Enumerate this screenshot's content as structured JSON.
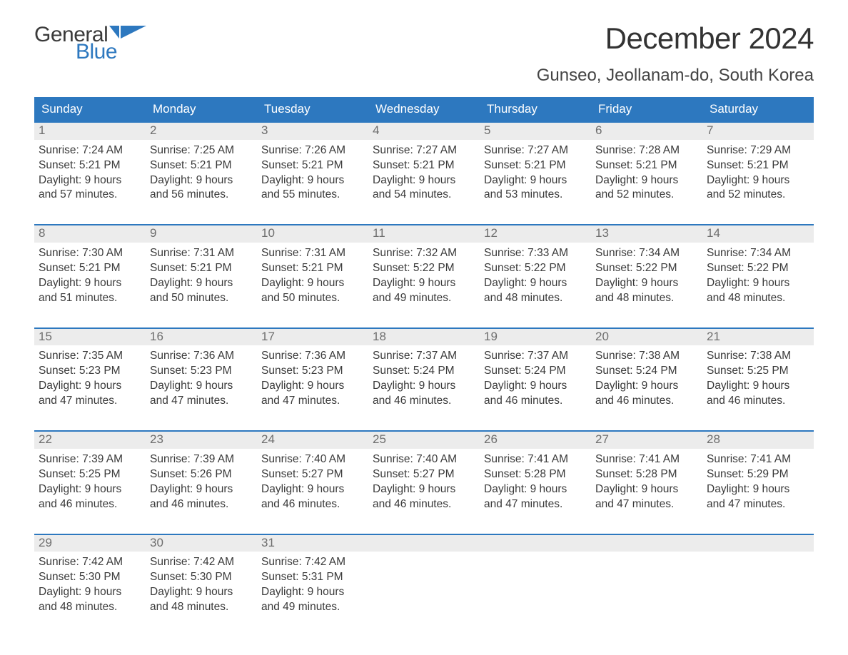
{
  "colors": {
    "brand_blue": "#2d78bf",
    "text_main": "#3a3a3a",
    "text_muted": "#6e6e6e",
    "daynum_bg": "#ececec",
    "background": "#ffffff",
    "week_divider": "#2d78bf"
  },
  "typography": {
    "font_family": "Arial, Helvetica, sans-serif",
    "month_title_fontsize": 42,
    "location_fontsize": 24,
    "dow_fontsize": 17,
    "daynum_fontsize": 17,
    "daybody_fontsize": 15.5,
    "logo_fontsize": 30
  },
  "logo": {
    "text_top": "General",
    "text_bottom": "Blue"
  },
  "header": {
    "month_title": "December 2024",
    "location": "Gunseo, Jeollanam-do, South Korea"
  },
  "days_of_week": [
    "Sunday",
    "Monday",
    "Tuesday",
    "Wednesday",
    "Thursday",
    "Friday",
    "Saturday"
  ],
  "weeks": [
    [
      {
        "num": "1",
        "sunrise": "Sunrise: 7:24 AM",
        "sunset": "Sunset: 5:21 PM",
        "daylight1": "Daylight: 9 hours",
        "daylight2": "and 57 minutes."
      },
      {
        "num": "2",
        "sunrise": "Sunrise: 7:25 AM",
        "sunset": "Sunset: 5:21 PM",
        "daylight1": "Daylight: 9 hours",
        "daylight2": "and 56 minutes."
      },
      {
        "num": "3",
        "sunrise": "Sunrise: 7:26 AM",
        "sunset": "Sunset: 5:21 PM",
        "daylight1": "Daylight: 9 hours",
        "daylight2": "and 55 minutes."
      },
      {
        "num": "4",
        "sunrise": "Sunrise: 7:27 AM",
        "sunset": "Sunset: 5:21 PM",
        "daylight1": "Daylight: 9 hours",
        "daylight2": "and 54 minutes."
      },
      {
        "num": "5",
        "sunrise": "Sunrise: 7:27 AM",
        "sunset": "Sunset: 5:21 PM",
        "daylight1": "Daylight: 9 hours",
        "daylight2": "and 53 minutes."
      },
      {
        "num": "6",
        "sunrise": "Sunrise: 7:28 AM",
        "sunset": "Sunset: 5:21 PM",
        "daylight1": "Daylight: 9 hours",
        "daylight2": "and 52 minutes."
      },
      {
        "num": "7",
        "sunrise": "Sunrise: 7:29 AM",
        "sunset": "Sunset: 5:21 PM",
        "daylight1": "Daylight: 9 hours",
        "daylight2": "and 52 minutes."
      }
    ],
    [
      {
        "num": "8",
        "sunrise": "Sunrise: 7:30 AM",
        "sunset": "Sunset: 5:21 PM",
        "daylight1": "Daylight: 9 hours",
        "daylight2": "and 51 minutes."
      },
      {
        "num": "9",
        "sunrise": "Sunrise: 7:31 AM",
        "sunset": "Sunset: 5:21 PM",
        "daylight1": "Daylight: 9 hours",
        "daylight2": "and 50 minutes."
      },
      {
        "num": "10",
        "sunrise": "Sunrise: 7:31 AM",
        "sunset": "Sunset: 5:21 PM",
        "daylight1": "Daylight: 9 hours",
        "daylight2": "and 50 minutes."
      },
      {
        "num": "11",
        "sunrise": "Sunrise: 7:32 AM",
        "sunset": "Sunset: 5:22 PM",
        "daylight1": "Daylight: 9 hours",
        "daylight2": "and 49 minutes."
      },
      {
        "num": "12",
        "sunrise": "Sunrise: 7:33 AM",
        "sunset": "Sunset: 5:22 PM",
        "daylight1": "Daylight: 9 hours",
        "daylight2": "and 48 minutes."
      },
      {
        "num": "13",
        "sunrise": "Sunrise: 7:34 AM",
        "sunset": "Sunset: 5:22 PM",
        "daylight1": "Daylight: 9 hours",
        "daylight2": "and 48 minutes."
      },
      {
        "num": "14",
        "sunrise": "Sunrise: 7:34 AM",
        "sunset": "Sunset: 5:22 PM",
        "daylight1": "Daylight: 9 hours",
        "daylight2": "and 48 minutes."
      }
    ],
    [
      {
        "num": "15",
        "sunrise": "Sunrise: 7:35 AM",
        "sunset": "Sunset: 5:23 PM",
        "daylight1": "Daylight: 9 hours",
        "daylight2": "and 47 minutes."
      },
      {
        "num": "16",
        "sunrise": "Sunrise: 7:36 AM",
        "sunset": "Sunset: 5:23 PM",
        "daylight1": "Daylight: 9 hours",
        "daylight2": "and 47 minutes."
      },
      {
        "num": "17",
        "sunrise": "Sunrise: 7:36 AM",
        "sunset": "Sunset: 5:23 PM",
        "daylight1": "Daylight: 9 hours",
        "daylight2": "and 47 minutes."
      },
      {
        "num": "18",
        "sunrise": "Sunrise: 7:37 AM",
        "sunset": "Sunset: 5:24 PM",
        "daylight1": "Daylight: 9 hours",
        "daylight2": "and 46 minutes."
      },
      {
        "num": "19",
        "sunrise": "Sunrise: 7:37 AM",
        "sunset": "Sunset: 5:24 PM",
        "daylight1": "Daylight: 9 hours",
        "daylight2": "and 46 minutes."
      },
      {
        "num": "20",
        "sunrise": "Sunrise: 7:38 AM",
        "sunset": "Sunset: 5:24 PM",
        "daylight1": "Daylight: 9 hours",
        "daylight2": "and 46 minutes."
      },
      {
        "num": "21",
        "sunrise": "Sunrise: 7:38 AM",
        "sunset": "Sunset: 5:25 PM",
        "daylight1": "Daylight: 9 hours",
        "daylight2": "and 46 minutes."
      }
    ],
    [
      {
        "num": "22",
        "sunrise": "Sunrise: 7:39 AM",
        "sunset": "Sunset: 5:25 PM",
        "daylight1": "Daylight: 9 hours",
        "daylight2": "and 46 minutes."
      },
      {
        "num": "23",
        "sunrise": "Sunrise: 7:39 AM",
        "sunset": "Sunset: 5:26 PM",
        "daylight1": "Daylight: 9 hours",
        "daylight2": "and 46 minutes."
      },
      {
        "num": "24",
        "sunrise": "Sunrise: 7:40 AM",
        "sunset": "Sunset: 5:27 PM",
        "daylight1": "Daylight: 9 hours",
        "daylight2": "and 46 minutes."
      },
      {
        "num": "25",
        "sunrise": "Sunrise: 7:40 AM",
        "sunset": "Sunset: 5:27 PM",
        "daylight1": "Daylight: 9 hours",
        "daylight2": "and 46 minutes."
      },
      {
        "num": "26",
        "sunrise": "Sunrise: 7:41 AM",
        "sunset": "Sunset: 5:28 PM",
        "daylight1": "Daylight: 9 hours",
        "daylight2": "and 47 minutes."
      },
      {
        "num": "27",
        "sunrise": "Sunrise: 7:41 AM",
        "sunset": "Sunset: 5:28 PM",
        "daylight1": "Daylight: 9 hours",
        "daylight2": "and 47 minutes."
      },
      {
        "num": "28",
        "sunrise": "Sunrise: 7:41 AM",
        "sunset": "Sunset: 5:29 PM",
        "daylight1": "Daylight: 9 hours",
        "daylight2": "and 47 minutes."
      }
    ],
    [
      {
        "num": "29",
        "sunrise": "Sunrise: 7:42 AM",
        "sunset": "Sunset: 5:30 PM",
        "daylight1": "Daylight: 9 hours",
        "daylight2": "and 48 minutes."
      },
      {
        "num": "30",
        "sunrise": "Sunrise: 7:42 AM",
        "sunset": "Sunset: 5:30 PM",
        "daylight1": "Daylight: 9 hours",
        "daylight2": "and 48 minutes."
      },
      {
        "num": "31",
        "sunrise": "Sunrise: 7:42 AM",
        "sunset": "Sunset: 5:31 PM",
        "daylight1": "Daylight: 9 hours",
        "daylight2": "and 49 minutes."
      },
      {
        "empty": true
      },
      {
        "empty": true
      },
      {
        "empty": true
      },
      {
        "empty": true
      }
    ]
  ]
}
